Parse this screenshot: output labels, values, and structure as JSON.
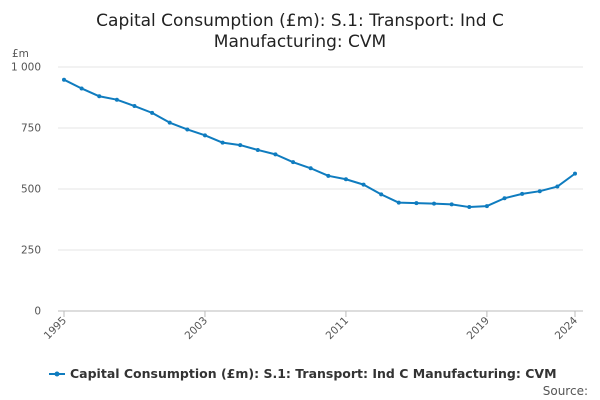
{
  "chart_data": {
    "type": "line",
    "title": "Capital Consumption (£m): S.1: Transport: Ind C Manufacturing: CVM",
    "title_lines": [
      "Capital Consumption (£m): S.1: Transport: Ind C",
      "Manufacturing: CVM"
    ],
    "ylabel": "£m",
    "xlabel": "",
    "ylim": [
      0,
      1000
    ],
    "yticks": [
      0,
      250,
      500,
      750,
      1000
    ],
    "ytick_labels": [
      "0",
      "250",
      "500",
      "750",
      "1 000"
    ],
    "xlim": [
      1995,
      2024
    ],
    "xticks": [
      1995,
      2003,
      2011,
      2019,
      2024
    ],
    "xtick_labels": [
      "1995",
      "2003",
      "2011",
      "2019",
      "2024"
    ],
    "grid": true,
    "series": [
      {
        "name": "Capital Consumption (£m): S.1: Transport: Ind C Manufacturing: CVM",
        "color": "#0f7cbf",
        "x": [
          1995,
          1996,
          1997,
          1998,
          1999,
          2000,
          2001,
          2002,
          2003,
          2004,
          2005,
          2006,
          2007,
          2008,
          2009,
          2010,
          2011,
          2012,
          2013,
          2014,
          2015,
          2016,
          2017,
          2018,
          2019,
          2020,
          2021,
          2022,
          2023,
          2024
        ],
        "values": [
          948,
          912,
          880,
          866,
          840,
          812,
          772,
          744,
          720,
          690,
          680,
          660,
          642,
          610,
          585,
          554,
          540,
          518,
          478,
          444,
          442,
          440,
          437,
          426,
          430,
          462,
          480,
          491,
          510,
          563
        ]
      }
    ],
    "legend": "bottom-left",
    "source_label": "Source:"
  }
}
